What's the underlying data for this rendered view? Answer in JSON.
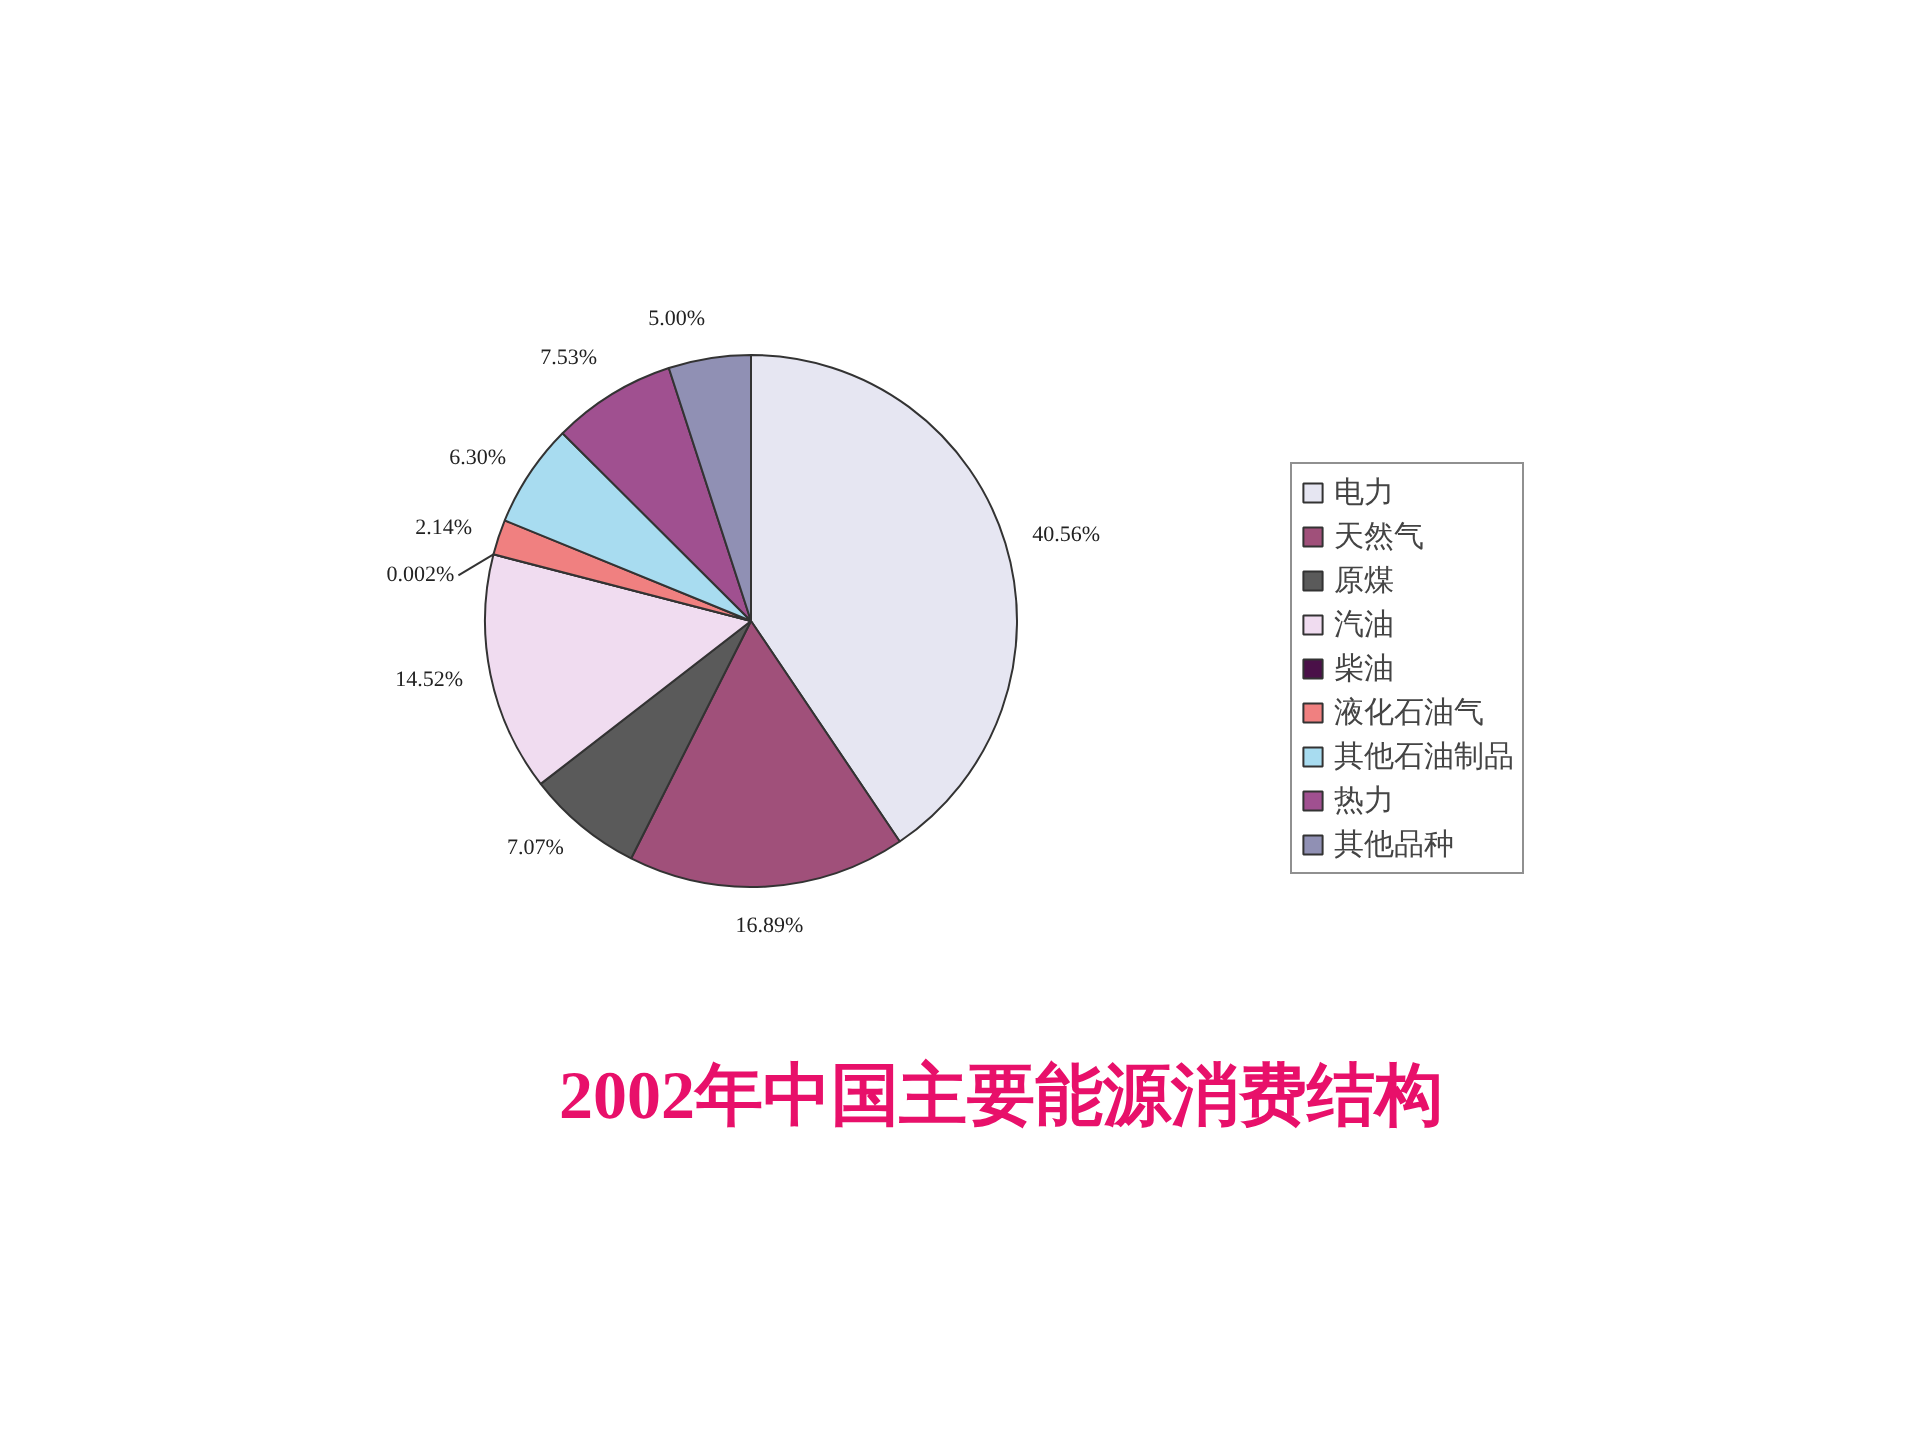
{
  "chart_data": {
    "type": "pie",
    "title": "2002年中国主要能源消费结构",
    "categories": [
      "电力",
      "天然气",
      "原煤",
      "汽油",
      "柴油",
      "液化石油气",
      "其他石油制品",
      "热力",
      "其他品种"
    ],
    "values": [
      40.56,
      16.89,
      7.07,
      14.52,
      0.002,
      2.14,
      6.3,
      7.53,
      5.0
    ],
    "value_labels": [
      "40.56%",
      "16.89%",
      "7.07%",
      "14.52%",
      "0.002%",
      "2.14%",
      "6.30%",
      "7.53%",
      "5.00%"
    ],
    "colors": [
      "#e6e6f2",
      "#a0507a",
      "#5a5a5a",
      "#f0dcf0",
      "#4a1048",
      "#f08080",
      "#a8dcf0",
      "#a05090",
      "#9090b4"
    ],
    "legend": "right"
  }
}
